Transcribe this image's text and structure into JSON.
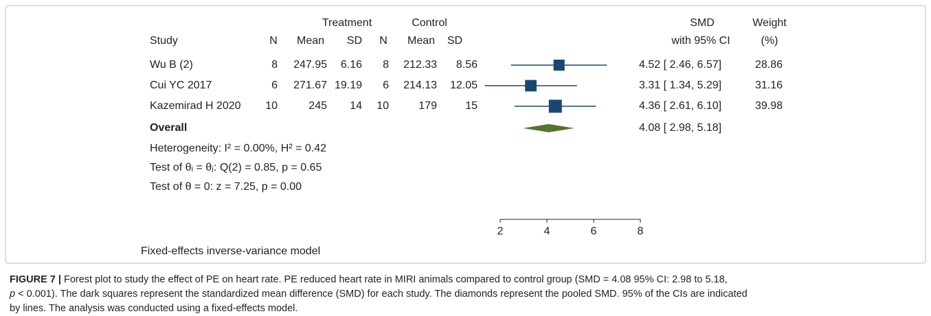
{
  "chart_data": {
    "type": "forest",
    "group_headers": [
      "Treatment",
      "Control"
    ],
    "columns": [
      "Study",
      "N",
      "Mean",
      "SD",
      "N",
      "Mean",
      "SD"
    ],
    "effect_header": [
      "SMD",
      "with 95% CI"
    ],
    "weight_header": [
      "Weight",
      "(%)"
    ],
    "rows": [
      {
        "study": "Wu B (2)",
        "treatment": [
          8,
          247.95,
          6.16
        ],
        "control": [
          8,
          212.33,
          8.56
        ],
        "smd": 4.52,
        "ci": [
          2.46,
          6.57
        ],
        "ci_label": "4.52 [ 2.46, 6.57]",
        "weight": 28.86
      },
      {
        "study": "Cui YC 2017",
        "treatment": [
          6,
          271.67,
          19.19
        ],
        "control": [
          6,
          214.13,
          12.05
        ],
        "smd": 3.31,
        "ci": [
          1.34,
          5.29
        ],
        "ci_label": "3.31 [ 1.34, 5.29]",
        "weight": 31.16
      },
      {
        "study": "Kazemirad H 2020",
        "treatment": [
          10,
          245,
          14
        ],
        "control": [
          10,
          179,
          15
        ],
        "smd": 4.36,
        "ci": [
          2.61,
          6.1
        ],
        "ci_label": "4.36 [ 2.61, 6.10]",
        "weight": 39.98
      }
    ],
    "overall": {
      "label": "Overall",
      "smd": 4.08,
      "ci": [
        2.98,
        5.18
      ],
      "ci_label": "4.08 [ 2.98, 5.18]"
    },
    "stats": [
      "Heterogeneity: I² = 0.00%, H² = 0.42",
      "Test of θᵢ = θⱼ: Q(2) = 0.85, p = 0.65",
      "Test of θ = 0: z = 7.25, p = 0.00"
    ],
    "xlim": [
      2,
      8
    ],
    "xticks": [
      2,
      4,
      6,
      8
    ],
    "square_color": "#1a476f",
    "diamond_color": "#55752f",
    "footnote": "Fixed-effects inverse-variance model"
  },
  "caption": {
    "label": "FIGURE 7 |",
    "line1": " Forest plot to study the effect of PE on heart rate. PE reduced heart rate in MIRI animals compared to control group (SMD = 4.08 95% CI: 2.98 to 5.18,",
    "line2_italic": "p",
    "line2": " < 0.001). The dark squares represent the standardized mean difference (SMD) for each study. The diamonds represent the pooled SMD. 95% of the CIs are indicated",
    "line3": "by lines. The analysis was conducted using a fixed-effects model."
  }
}
